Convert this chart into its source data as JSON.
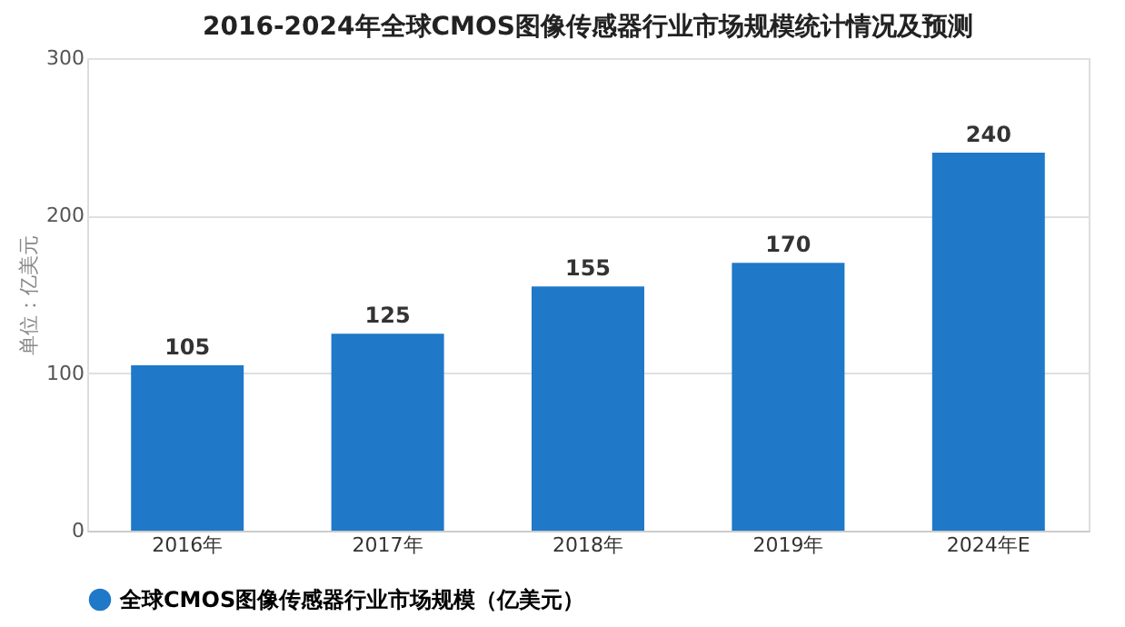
{
  "chart_data": {
    "type": "bar",
    "title": "2016-2024年全球CMOS图像传感器行业市场规模统计情况及预测",
    "ylabel": "单位：亿美元",
    "categories": [
      "2016年",
      "2017年",
      "2018年",
      "2019年",
      "2024年E"
    ],
    "series": [
      {
        "name": "全球CMOS图像传感器行业市场规模（亿美元）",
        "color": "#1f78c8",
        "values": [
          105,
          125,
          155,
          170,
          240
        ]
      }
    ],
    "ylim": [
      0,
      300
    ],
    "yticks": [
      0,
      100,
      200,
      300
    ],
    "grid": "y",
    "legend": "bottom",
    "data_labels": true
  }
}
